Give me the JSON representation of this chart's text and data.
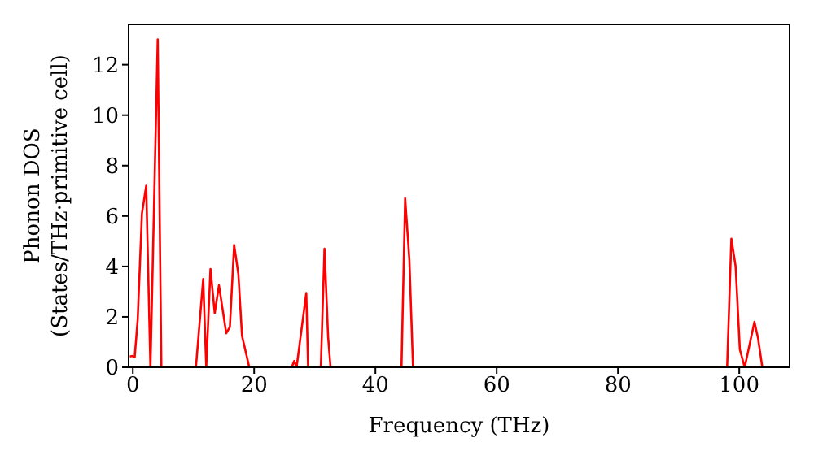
{
  "chart_data": {
    "type": "line",
    "xlabel": "Frequency (THz)",
    "ylabel": "Phonon DOS (States/THz·primitive cell)",
    "xlim": [
      -0.7,
      108.3
    ],
    "ylim": [
      0,
      13.6
    ],
    "xticks": [
      0,
      20,
      40,
      60,
      80,
      100
    ],
    "yticks": [
      0,
      2,
      4,
      6,
      8,
      10,
      12
    ],
    "marker": "none",
    "line_style": "solid",
    "series": [
      {
        "color": "#ff0000",
        "x": [
          -0.5,
          -0.1,
          0.3,
          0.8,
          1.5,
          2.2,
          2.9,
          4.1,
          4.7,
          10.4,
          11.6,
          12.1,
          12.8,
          13.5,
          14.2,
          15.4,
          16.0,
          16.7,
          17.4,
          18.0,
          19.2,
          26.2,
          26.6,
          27.0,
          28.6,
          28.9,
          31.0,
          31.6,
          32.2,
          32.6,
          44.3,
          44.9,
          45.6,
          46.2,
          98.0,
          98.7,
          99.4,
          100.1,
          100.9,
          102.5,
          103.1,
          103.8
        ],
        "values": [
          0.43,
          0.45,
          0.4,
          1.9,
          6.1,
          7.2,
          0,
          13.0,
          0,
          0,
          3.5,
          0,
          3.9,
          2.15,
          3.25,
          1.35,
          1.6,
          4.85,
          3.7,
          1.25,
          0,
          0,
          0.25,
          0,
          2.95,
          0,
          0,
          4.7,
          1.2,
          0,
          0,
          6.7,
          4.25,
          0,
          0,
          5.1,
          4.0,
          0.7,
          0,
          1.8,
          1.15,
          0
        ]
      }
    ]
  }
}
